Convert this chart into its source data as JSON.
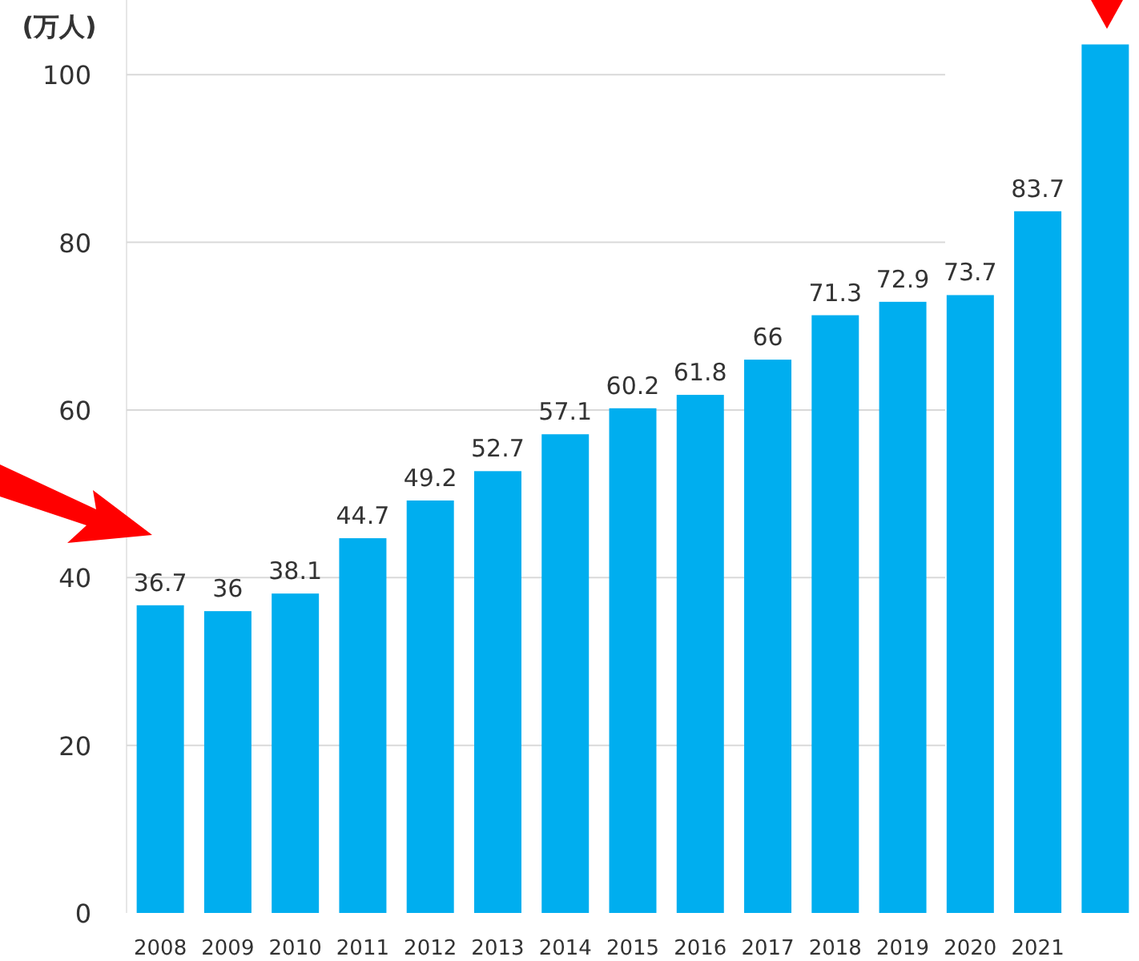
{
  "chart_data": {
    "type": "bar",
    "ylabel": "(万人)",
    "categories": [
      "2008",
      "2009",
      "2010",
      "2011",
      "2012",
      "2013",
      "2014",
      "2015",
      "2016",
      "2017",
      "2018",
      "2019",
      "2020",
      "2021",
      null
    ],
    "values": [
      36.7,
      36,
      38.1,
      44.7,
      49.2,
      52.7,
      57.1,
      60.2,
      61.8,
      66,
      71.3,
      72.9,
      73.7,
      83.7,
      103.6
    ],
    "value_labels": [
      "36.7",
      "36",
      "38.1",
      "44.7",
      "49.2",
      "52.7",
      "57.1",
      "60.2",
      "61.8",
      "66",
      "71.3",
      "72.9",
      "73.7",
      "83.7",
      null
    ],
    "color": "#00aeef",
    "ylim": [
      0,
      108.9
    ],
    "yticks": [
      0,
      20,
      40,
      60,
      80,
      100
    ],
    "grid": "y"
  }
}
